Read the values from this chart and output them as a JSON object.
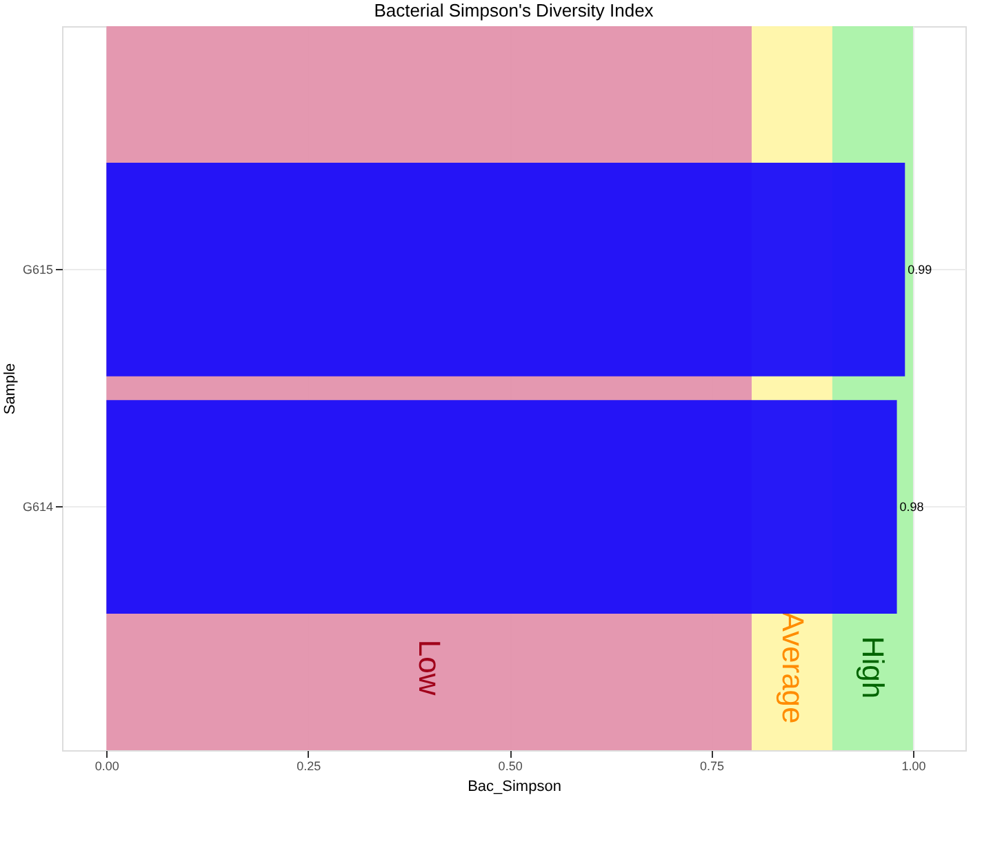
{
  "chart_data": {
    "type": "bar",
    "orientation": "horizontal",
    "title": "Bacterial Simpson's Diversity Index",
    "xlabel": "Bac_Simpson",
    "ylabel": "Sample",
    "categories": [
      "G615",
      "G614"
    ],
    "values": [
      0.99,
      0.98
    ],
    "color": "#1a0dfa",
    "data_labels": true,
    "xlim": [
      -0.055,
      1.065
    ],
    "xticks": [
      {
        "value": 0,
        "label": "0.00"
      },
      {
        "value": 0.25,
        "label": "0.25"
      },
      {
        "value": 0.5,
        "label": "0.50"
      },
      {
        "value": 0.75,
        "label": "0.75"
      },
      {
        "value": 1,
        "label": "1.00"
      }
    ],
    "bands": [
      {
        "axis": "x",
        "from": 0,
        "to": 0.8,
        "label": "Low",
        "color": "#e392ac"
      },
      {
        "axis": "x",
        "from": 0.8,
        "to": 0.9,
        "label": "Average",
        "color": "#fff5a8"
      },
      {
        "axis": "x",
        "from": 0.9,
        "to": 1.0,
        "label": "High",
        "color": "#aaf2a8"
      }
    ],
    "grid": true
  }
}
